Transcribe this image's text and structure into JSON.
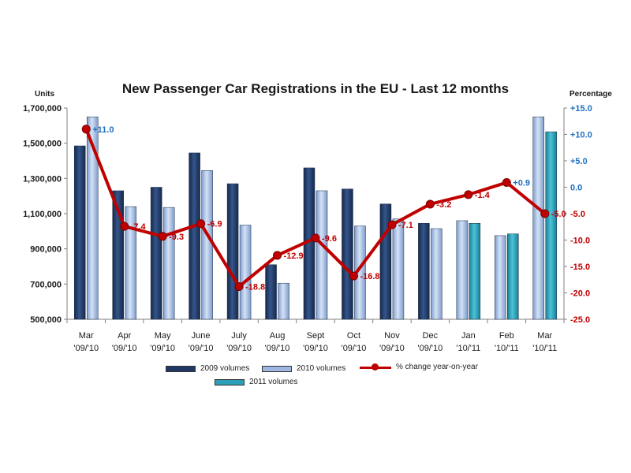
{
  "chart_data": {
    "type": "bar",
    "title": "New Passenger Car Registrations in the EU - Last 12 months",
    "y_left_label": "Units",
    "y_right_label": "Percentage",
    "y_left_range": [
      500000,
      1700000
    ],
    "y_left_ticks": [
      "500,000",
      "700,000",
      "900,000",
      "1,100,000",
      "1,300,000",
      "1,500,000",
      "1,700,000"
    ],
    "y_right_range": [
      -25,
      15
    ],
    "y_right_ticks": [
      "-25.0",
      "-20.0",
      "-15.0",
      "-10.0",
      "-5.0",
      "0.0",
      "+5.0",
      "+10.0",
      "+15.0"
    ],
    "categories": [
      {
        "month": "Mar",
        "period": "'09/'10"
      },
      {
        "month": "Apr",
        "period": "'09/'10"
      },
      {
        "month": "May",
        "period": "'09/'10"
      },
      {
        "month": "June",
        "period": "'09/'10"
      },
      {
        "month": "July",
        "period": "'09/'10"
      },
      {
        "month": "Aug",
        "period": "'09/'10"
      },
      {
        "month": "Sept",
        "period": "'09/'10"
      },
      {
        "month": "Oct",
        "period": "'09/'10"
      },
      {
        "month": "Nov",
        "period": "'09/'10"
      },
      {
        "month": "Dec",
        "period": "'09/'10"
      },
      {
        "month": "Jan",
        "period": "'10/'11"
      },
      {
        "month": "Feb",
        "period": "'10/'11"
      },
      {
        "month": "Mar",
        "period": "'10/'11"
      }
    ],
    "bar_groups": [
      [
        "2009",
        "2010"
      ],
      [
        "2009",
        "2010"
      ],
      [
        "2009",
        "2010"
      ],
      [
        "2009",
        "2010"
      ],
      [
        "2009",
        "2010"
      ],
      [
        "2009",
        "2010"
      ],
      [
        "2009",
        "2010"
      ],
      [
        "2009",
        "2010"
      ],
      [
        "2009",
        "2010"
      ],
      [
        "2009",
        "2010"
      ],
      [
        "2010",
        "2011"
      ],
      [
        "2010",
        "2011"
      ],
      [
        "2010",
        "2011"
      ]
    ],
    "series": [
      {
        "name": "2009 volumes",
        "key": "2009",
        "color": "#1f3864",
        "values": [
          1485000,
          1230000,
          1250000,
          1445000,
          1270000,
          810000,
          1360000,
          1240000,
          1155000,
          1045000,
          null,
          null,
          null
        ]
      },
      {
        "name": "2010 volumes",
        "key": "2010",
        "color": "#9db7e0",
        "values": [
          1650000,
          1140000,
          1135000,
          1345000,
          1035000,
          705000,
          1230000,
          1030000,
          1070000,
          1015000,
          1060000,
          975000,
          1650000
        ]
      },
      {
        "name": "2011 volumes",
        "key": "2011",
        "color": "#2aa0b8",
        "values": [
          null,
          null,
          null,
          null,
          null,
          null,
          null,
          null,
          null,
          null,
          1045000,
          985000,
          1565000
        ]
      }
    ],
    "line_series": {
      "name": "% change year-on-year",
      "color": "#c00000",
      "values": [
        11.0,
        -7.4,
        -9.3,
        -6.9,
        -18.8,
        -12.9,
        -9.6,
        -16.8,
        -7.1,
        -3.2,
        -1.4,
        0.9,
        -5.0
      ],
      "labels": [
        "+11.0",
        "-7.4",
        "-9.3",
        "-6.9",
        "-18.8",
        "-12.9",
        "-9.6",
        "-16.8",
        "-7.1",
        "-3.2",
        "-1.4",
        "+0.9",
        "-5.0"
      ],
      "label_colors": [
        "#1f6fc0",
        "#c00000",
        "#c00000",
        "#c00000",
        "#c00000",
        "#c00000",
        "#c00000",
        "#c00000",
        "#c00000",
        "#c00000",
        "#c00000",
        "#1f6fc0",
        "#c00000"
      ]
    },
    "axis_colors": {
      "left": "#1a1a1a",
      "right_positive": "#1f6fc0",
      "right_negative": "#c00000"
    },
    "grid": false,
    "legend": "bottom"
  }
}
